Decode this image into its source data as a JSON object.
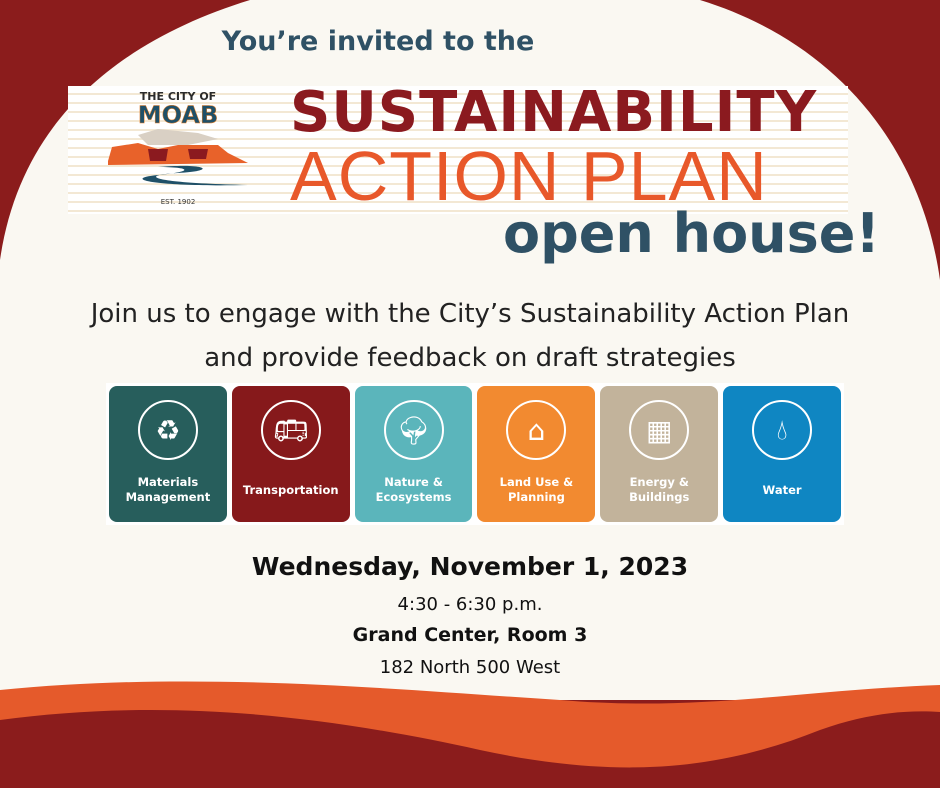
{
  "header": {
    "invite": "You’re invited to the"
  },
  "logo": {
    "line1": "THE CITY OF",
    "line2": "MOAB",
    "est": "EST. 1902"
  },
  "title": {
    "line1": "SUSTAINABILITY",
    "line2": "ACTION PLAN",
    "line3": "open house!"
  },
  "description": {
    "line1": "Join us to engage with the City’s Sustainability Action Plan",
    "line2": "and provide feedback on draft strategies"
  },
  "categories": [
    {
      "label1": "Materials",
      "label2": "Management",
      "icon": "recycle-leaf-icon",
      "color": "#275e5c"
    },
    {
      "label1": "Transportation",
      "label2": "",
      "icon": "bus-icon",
      "color": "#86191b"
    },
    {
      "label1": "Nature &",
      "label2": "Ecosystems",
      "icon": "tree-icon",
      "color": "#5bb5bb"
    },
    {
      "label1": "Land Use &",
      "label2": "Planning",
      "icon": "houses-road-icon",
      "color": "#f28a30"
    },
    {
      "label1": "Energy &",
      "label2": "Buildings",
      "icon": "building-icon",
      "color": "#c2b39b"
    },
    {
      "label1": "Water",
      "label2": "",
      "icon": "water-drop-icon",
      "color": "#0f86c2"
    }
  ],
  "event": {
    "date": "Wednesday, November 1, 2023",
    "time": "4:30 - 6:30 p.m.",
    "venue": "Grand Center, Room 3",
    "address": "182 North 500 West"
  },
  "colors": {
    "dark_red": "#8b1c1c",
    "orange": "#e55a2b",
    "cream": "#faf8f2",
    "navy": "#2f5165"
  }
}
